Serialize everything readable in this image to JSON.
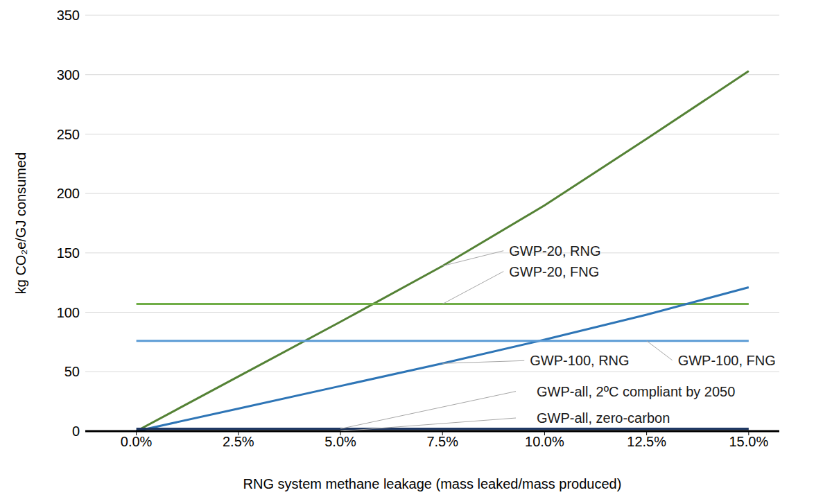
{
  "chart_data": {
    "type": "line",
    "x_label": "RNG system methane leakage (mass leaked/mass produced)",
    "y_label": "kg CO₂e/GJ consumed",
    "x": [
      0,
      2.5,
      5,
      7.5,
      10,
      12.5,
      15
    ],
    "series": [
      {
        "name": "GWP-20, RNG",
        "color": "#548235",
        "values": [
          0,
          46,
          92,
          139,
          190,
          246,
          303
        ]
      },
      {
        "name": "GWP-20, FNG",
        "color": "#70ad47",
        "values": [
          107,
          107,
          107,
          107,
          107,
          107,
          107
        ]
      },
      {
        "name": "GWP-100, RNG",
        "color": "#2e75b6",
        "values": [
          0,
          19,
          38,
          57,
          77,
          98,
          121
        ]
      },
      {
        "name": "GWP-100, FNG",
        "color": "#5b9bd5",
        "values": [
          76,
          76,
          76,
          76,
          76,
          76,
          76
        ]
      },
      {
        "name": "GWP-all, 2ºC compliant by 2050",
        "color": "#1f3864",
        "values": [
          2,
          2,
          2,
          2,
          2,
          2,
          2
        ]
      },
      {
        "name": "GWP-all, zero-carbon",
        "color": "#262626",
        "values": [
          0,
          0,
          0,
          0,
          0,
          0,
          0
        ]
      }
    ],
    "xlim": [
      -1.25,
      15.75
    ],
    "ylim": [
      0,
      350
    ],
    "xticks": [
      {
        "value": 0,
        "label": "0.0%"
      },
      {
        "value": 2.5,
        "label": "2.5%"
      },
      {
        "value": 5,
        "label": "5.0%"
      },
      {
        "value": 7.5,
        "label": "7.5%"
      },
      {
        "value": 10,
        "label": "10.0%"
      },
      {
        "value": 12.5,
        "label": "12.5%"
      },
      {
        "value": 15,
        "label": "15.0%"
      }
    ],
    "yticks": [
      0,
      50,
      100,
      150,
      200,
      250,
      300,
      350
    ],
    "grid": true
  }
}
